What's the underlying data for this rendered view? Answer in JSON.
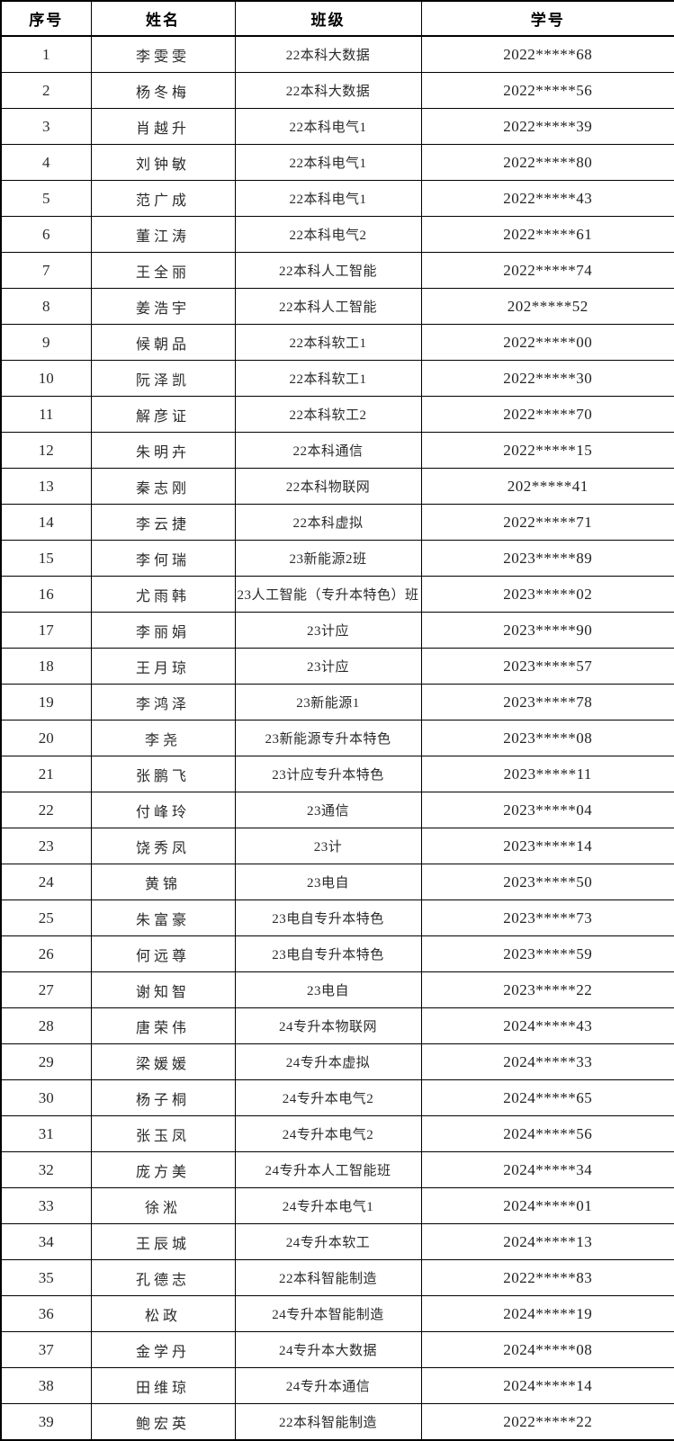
{
  "table": {
    "columns": [
      {
        "key": "index",
        "label": "序号"
      },
      {
        "key": "name",
        "label": "姓名"
      },
      {
        "key": "class",
        "label": "班级"
      },
      {
        "key": "student_id",
        "label": "学号"
      }
    ],
    "rows": [
      {
        "index": "1",
        "name": "李雯雯",
        "class": "22本科大数据",
        "student_id": "2022*****68"
      },
      {
        "index": "2",
        "name": "杨冬梅",
        "class": "22本科大数据",
        "student_id": "2022*****56"
      },
      {
        "index": "3",
        "name": "肖越升",
        "class": "22本科电气1",
        "student_id": "2022*****39"
      },
      {
        "index": "4",
        "name": "刘钟敏",
        "class": "22本科电气1",
        "student_id": "2022*****80"
      },
      {
        "index": "5",
        "name": "范广成",
        "class": "22本科电气1",
        "student_id": "2022*****43"
      },
      {
        "index": "6",
        "name": "董江涛",
        "class": "22本科电气2",
        "student_id": "2022*****61"
      },
      {
        "index": "7",
        "name": "王全丽",
        "class": "22本科人工智能",
        "student_id": "2022*****74"
      },
      {
        "index": "8",
        "name": "姜浩宇",
        "class": "22本科人工智能",
        "student_id": "202*****52"
      },
      {
        "index": "9",
        "name": "候朝品",
        "class": "22本科软工1",
        "student_id": "2022*****00"
      },
      {
        "index": "10",
        "name": "阮泽凯",
        "class": "22本科软工1",
        "student_id": "2022*****30"
      },
      {
        "index": "11",
        "name": "解彦证",
        "class": "22本科软工2",
        "student_id": "2022*****70"
      },
      {
        "index": "12",
        "name": "朱明卉",
        "class": "22本科通信",
        "student_id": "2022*****15"
      },
      {
        "index": "13",
        "name": "秦志刚",
        "class": "22本科物联网",
        "student_id": "202*****41"
      },
      {
        "index": "14",
        "name": "李云捷",
        "class": "22本科虚拟",
        "student_id": "2022*****71"
      },
      {
        "index": "15",
        "name": "李何瑞",
        "class": "23新能源2班",
        "student_id": "2023*****89"
      },
      {
        "index": "16",
        "name": "尤雨韩",
        "class": "23人工智能（专升本特色）班",
        "student_id": "2023*****02"
      },
      {
        "index": "17",
        "name": "李丽娟",
        "class": "23计应",
        "student_id": "2023*****90"
      },
      {
        "index": "18",
        "name": "王月琼",
        "class": "23计应",
        "student_id": "2023*****57"
      },
      {
        "index": "19",
        "name": "李鸿泽",
        "class": "23新能源1",
        "student_id": "2023*****78"
      },
      {
        "index": "20",
        "name": "李尧",
        "class": "23新能源专升本特色",
        "student_id": "2023*****08"
      },
      {
        "index": "21",
        "name": "张鹏飞",
        "class": "23计应专升本特色",
        "student_id": "2023*****11"
      },
      {
        "index": "22",
        "name": "付峰玲",
        "class": "23通信",
        "student_id": "2023*****04"
      },
      {
        "index": "23",
        "name": "饶秀凤",
        "class": "23计",
        "student_id": "2023*****14"
      },
      {
        "index": "24",
        "name": "黄锦",
        "class": "23电自",
        "student_id": "2023*****50"
      },
      {
        "index": "25",
        "name": "朱富豪",
        "class": "23电自专升本特色",
        "student_id": "2023*****73"
      },
      {
        "index": "26",
        "name": "何远尊",
        "class": "23电自专升本特色",
        "student_id": "2023*****59"
      },
      {
        "index": "27",
        "name": "谢知智",
        "class": "23电自",
        "student_id": "2023*****22"
      },
      {
        "index": "28",
        "name": "唐荣伟",
        "class": "24专升本物联网",
        "student_id": "2024*****43"
      },
      {
        "index": "29",
        "name": "梁媛媛",
        "class": "24专升本虚拟",
        "student_id": "2024*****33"
      },
      {
        "index": "30",
        "name": "杨子桐",
        "class": "24专升本电气2",
        "student_id": "2024*****65"
      },
      {
        "index": "31",
        "name": "张玉凤",
        "class": "24专升本电气2",
        "student_id": "2024*****56"
      },
      {
        "index": "32",
        "name": "庞方美",
        "class": "24专升本人工智能班",
        "student_id": "2024*****34"
      },
      {
        "index": "33",
        "name": "徐淞",
        "class": "24专升本电气1",
        "student_id": "2024*****01"
      },
      {
        "index": "34",
        "name": "王辰城",
        "class": "24专升本软工",
        "student_id": "2024*****13"
      },
      {
        "index": "35",
        "name": "孔德志",
        "class": "22本科智能制造",
        "student_id": "2022*****83"
      },
      {
        "index": "36",
        "name": "松政",
        "class": "24专升本智能制造",
        "student_id": "2024*****19"
      },
      {
        "index": "37",
        "name": "金学丹",
        "class": "24专升本大数据",
        "student_id": "2024*****08"
      },
      {
        "index": "38",
        "name": "田维琼",
        "class": "24专升本通信",
        "student_id": "2024*****14"
      },
      {
        "index": "39",
        "name": "鲍宏英",
        "class": "22本科智能制造",
        "student_id": "2022*****22"
      }
    ]
  },
  "colors": {
    "border": "#000000",
    "text": "#1c1c1c",
    "background": "#ffffff"
  }
}
